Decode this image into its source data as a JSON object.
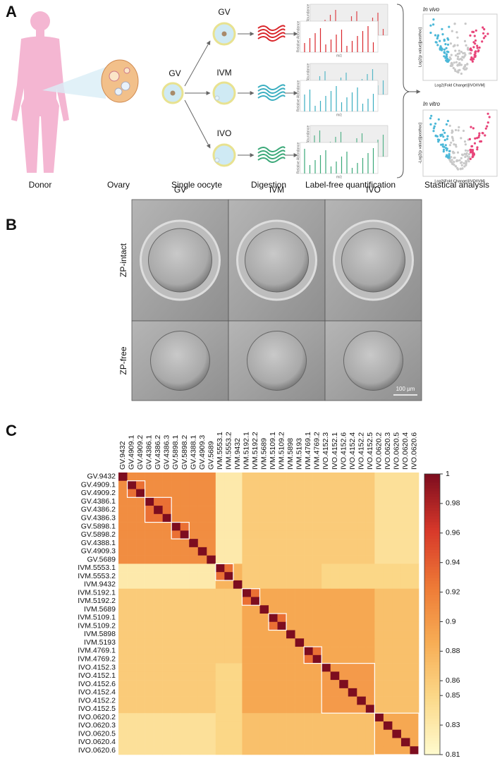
{
  "panel_a": {
    "letter": "A",
    "stages": [
      "Donor",
      "Ovary",
      "Single oocyte",
      "Digestion",
      "Label-free quantification",
      "Stastical analysis"
    ],
    "oocyte": "GV",
    "groups": [
      "GV",
      "IVM",
      "IVO"
    ],
    "volcano_titles": [
      "In vivo",
      "In vitro"
    ],
    "volcano_y_labels": [
      "Log2(p value)[posthoc]",
      "-Log2(p value)[posthoc]"
    ],
    "volcano_x_labels": [
      "Log2(Fold Change)[IVO/IVM]",
      "Log2(Fold Change)[IVO/IVM]"
    ],
    "spectrum_y_label": "Relative Abundance",
    "spectrum_x_label": "m/z"
  },
  "panel_b": {
    "letter": "B",
    "columns": [
      "GV",
      "IVM",
      "IVO"
    ],
    "rows": [
      "ZP-intact",
      "ZP-free"
    ],
    "scale_bar": "100 µm"
  },
  "chart_data": {
    "type": "heatmap",
    "letter": "C",
    "labels": [
      "GV.9432",
      "GV.4909.1",
      "GV.4909.2",
      "GV.4386.1",
      "GV.4386.2",
      "GV.4386.3",
      "GV.5898.1",
      "GV.5898.2",
      "GV.4388.1",
      "GV.4909.3",
      "GV.5689",
      "IVM.5553.1",
      "IVM.5553.2",
      "IVM.9432",
      "IVM.5192.1",
      "IVM.5192.2",
      "IVM.5689",
      "IVM.5109.1",
      "IVM.5109.2",
      "IVM.5898",
      "IVM.5193",
      "IVM.4769.1",
      "IVM.4769.2",
      "IVO.4152.3",
      "IVO.4152.1",
      "IVO.4152.6",
      "IVO.4152.4",
      "IVO.4152.2",
      "IVO.4152.5",
      "IVO.0620.2",
      "IVO.0620.3",
      "IVO.0620.5",
      "IVO.0620.4",
      "IVO.0620.6"
    ],
    "zlim": [
      0.81,
      1
    ],
    "zticks": [
      0.81,
      0.83,
      0.85,
      0.86,
      0.88,
      0.9,
      0.92,
      0.94,
      0.96,
      0.98,
      1
    ],
    "colorscale": [
      "#fffbcf",
      "#fbd98a",
      "#f7ad55",
      "#ee7a36",
      "#d7382a",
      "#7d0d1f"
    ],
    "z": [
      [
        1,
        0.91,
        0.91,
        0.91,
        0.91,
        0.91,
        0.91,
        0.91,
        0.91,
        0.91,
        0.91,
        0.83,
        0.83,
        0.83,
        0.86,
        0.86,
        0.86,
        0.86,
        0.86,
        0.86,
        0.86,
        0.86,
        0.86,
        0.86,
        0.86,
        0.86,
        0.86,
        0.86,
        0.86,
        0.84,
        0.84,
        0.84,
        0.84,
        0.84
      ],
      [
        0.91,
        1,
        0.93,
        0.91,
        0.91,
        0.91,
        0.91,
        0.91,
        0.91,
        0.91,
        0.91,
        0.83,
        0.83,
        0.83,
        0.86,
        0.86,
        0.86,
        0.86,
        0.86,
        0.86,
        0.86,
        0.86,
        0.86,
        0.86,
        0.86,
        0.86,
        0.86,
        0.86,
        0.86,
        0.84,
        0.84,
        0.84,
        0.84,
        0.84
      ],
      [
        0.91,
        0.93,
        1,
        0.91,
        0.91,
        0.91,
        0.91,
        0.91,
        0.91,
        0.91,
        0.91,
        0.83,
        0.83,
        0.83,
        0.86,
        0.86,
        0.86,
        0.86,
        0.86,
        0.86,
        0.86,
        0.86,
        0.86,
        0.86,
        0.86,
        0.86,
        0.86,
        0.86,
        0.86,
        0.84,
        0.84,
        0.84,
        0.84,
        0.84
      ],
      [
        0.91,
        0.91,
        0.91,
        1,
        0.93,
        0.93,
        0.91,
        0.91,
        0.91,
        0.91,
        0.91,
        0.83,
        0.83,
        0.83,
        0.86,
        0.86,
        0.86,
        0.86,
        0.86,
        0.86,
        0.86,
        0.86,
        0.86,
        0.86,
        0.86,
        0.86,
        0.86,
        0.86,
        0.86,
        0.84,
        0.84,
        0.84,
        0.84,
        0.84
      ],
      [
        0.91,
        0.91,
        0.91,
        0.93,
        1,
        0.93,
        0.91,
        0.91,
        0.91,
        0.91,
        0.91,
        0.83,
        0.83,
        0.83,
        0.86,
        0.86,
        0.86,
        0.86,
        0.86,
        0.86,
        0.86,
        0.86,
        0.86,
        0.86,
        0.86,
        0.86,
        0.86,
        0.86,
        0.86,
        0.84,
        0.84,
        0.84,
        0.84,
        0.84
      ],
      [
        0.91,
        0.91,
        0.91,
        0.93,
        0.93,
        1,
        0.91,
        0.91,
        0.91,
        0.91,
        0.91,
        0.83,
        0.83,
        0.83,
        0.86,
        0.86,
        0.86,
        0.86,
        0.86,
        0.86,
        0.86,
        0.86,
        0.86,
        0.86,
        0.86,
        0.86,
        0.86,
        0.86,
        0.86,
        0.84,
        0.84,
        0.84,
        0.84,
        0.84
      ],
      [
        0.91,
        0.91,
        0.91,
        0.91,
        0.91,
        0.91,
        1,
        0.93,
        0.91,
        0.91,
        0.91,
        0.83,
        0.83,
        0.83,
        0.86,
        0.86,
        0.86,
        0.86,
        0.86,
        0.86,
        0.86,
        0.86,
        0.86,
        0.86,
        0.86,
        0.86,
        0.86,
        0.86,
        0.86,
        0.84,
        0.84,
        0.84,
        0.84,
        0.84
      ],
      [
        0.91,
        0.91,
        0.91,
        0.91,
        0.91,
        0.91,
        0.93,
        1,
        0.91,
        0.91,
        0.91,
        0.83,
        0.83,
        0.83,
        0.86,
        0.86,
        0.86,
        0.86,
        0.86,
        0.86,
        0.86,
        0.86,
        0.86,
        0.86,
        0.86,
        0.86,
        0.86,
        0.86,
        0.86,
        0.84,
        0.84,
        0.84,
        0.84,
        0.84
      ],
      [
        0.91,
        0.91,
        0.91,
        0.91,
        0.91,
        0.91,
        0.91,
        0.91,
        1,
        0.91,
        0.91,
        0.83,
        0.83,
        0.83,
        0.86,
        0.86,
        0.86,
        0.86,
        0.86,
        0.86,
        0.86,
        0.86,
        0.86,
        0.86,
        0.86,
        0.86,
        0.86,
        0.86,
        0.86,
        0.84,
        0.84,
        0.84,
        0.84,
        0.84
      ],
      [
        0.91,
        0.91,
        0.91,
        0.91,
        0.91,
        0.91,
        0.91,
        0.91,
        0.91,
        1,
        0.91,
        0.83,
        0.83,
        0.83,
        0.86,
        0.86,
        0.86,
        0.86,
        0.86,
        0.86,
        0.86,
        0.86,
        0.86,
        0.86,
        0.86,
        0.86,
        0.86,
        0.86,
        0.86,
        0.84,
        0.84,
        0.84,
        0.84,
        0.84
      ],
      [
        0.91,
        0.91,
        0.91,
        0.91,
        0.91,
        0.91,
        0.91,
        0.91,
        0.91,
        0.91,
        1,
        0.83,
        0.83,
        0.83,
        0.86,
        0.86,
        0.86,
        0.86,
        0.86,
        0.86,
        0.86,
        0.86,
        0.86,
        0.86,
        0.86,
        0.86,
        0.86,
        0.86,
        0.86,
        0.84,
        0.84,
        0.84,
        0.84,
        0.84
      ],
      [
        0.83,
        0.83,
        0.83,
        0.83,
        0.83,
        0.83,
        0.83,
        0.83,
        0.83,
        0.83,
        0.83,
        1,
        0.93,
        0.88,
        0.86,
        0.86,
        0.86,
        0.86,
        0.86,
        0.86,
        0.86,
        0.86,
        0.86,
        0.85,
        0.85,
        0.85,
        0.85,
        0.85,
        0.85,
        0.85,
        0.85,
        0.85,
        0.85,
        0.85
      ],
      [
        0.83,
        0.83,
        0.83,
        0.83,
        0.83,
        0.83,
        0.83,
        0.83,
        0.83,
        0.83,
        0.83,
        0.93,
        1,
        0.88,
        0.86,
        0.86,
        0.86,
        0.86,
        0.86,
        0.86,
        0.86,
        0.86,
        0.86,
        0.85,
        0.85,
        0.85,
        0.85,
        0.85,
        0.85,
        0.85,
        0.85,
        0.85,
        0.85,
        0.85
      ],
      [
        0.83,
        0.83,
        0.83,
        0.83,
        0.83,
        0.83,
        0.83,
        0.83,
        0.83,
        0.83,
        0.83,
        0.88,
        0.88,
        1,
        0.86,
        0.86,
        0.86,
        0.86,
        0.86,
        0.86,
        0.86,
        0.86,
        0.86,
        0.85,
        0.85,
        0.85,
        0.85,
        0.85,
        0.85,
        0.85,
        0.85,
        0.85,
        0.85,
        0.85
      ],
      [
        0.86,
        0.86,
        0.86,
        0.86,
        0.86,
        0.86,
        0.86,
        0.86,
        0.86,
        0.86,
        0.86,
        0.86,
        0.86,
        0.86,
        1,
        0.93,
        0.89,
        0.89,
        0.89,
        0.89,
        0.89,
        0.89,
        0.89,
        0.89,
        0.89,
        0.89,
        0.89,
        0.89,
        0.89,
        0.87,
        0.87,
        0.87,
        0.87,
        0.87
      ],
      [
        0.86,
        0.86,
        0.86,
        0.86,
        0.86,
        0.86,
        0.86,
        0.86,
        0.86,
        0.86,
        0.86,
        0.86,
        0.86,
        0.86,
        0.93,
        1,
        0.89,
        0.89,
        0.89,
        0.89,
        0.89,
        0.89,
        0.89,
        0.89,
        0.89,
        0.89,
        0.89,
        0.89,
        0.89,
        0.87,
        0.87,
        0.87,
        0.87,
        0.87
      ],
      [
        0.86,
        0.86,
        0.86,
        0.86,
        0.86,
        0.86,
        0.86,
        0.86,
        0.86,
        0.86,
        0.86,
        0.86,
        0.86,
        0.86,
        0.89,
        0.89,
        1,
        0.89,
        0.89,
        0.89,
        0.89,
        0.89,
        0.89,
        0.89,
        0.89,
        0.89,
        0.89,
        0.89,
        0.89,
        0.87,
        0.87,
        0.87,
        0.87,
        0.87
      ],
      [
        0.86,
        0.86,
        0.86,
        0.86,
        0.86,
        0.86,
        0.86,
        0.86,
        0.86,
        0.86,
        0.86,
        0.86,
        0.86,
        0.86,
        0.89,
        0.89,
        0.89,
        1,
        0.93,
        0.89,
        0.89,
        0.89,
        0.89,
        0.89,
        0.89,
        0.89,
        0.89,
        0.89,
        0.89,
        0.87,
        0.87,
        0.87,
        0.87,
        0.87
      ],
      [
        0.86,
        0.86,
        0.86,
        0.86,
        0.86,
        0.86,
        0.86,
        0.86,
        0.86,
        0.86,
        0.86,
        0.86,
        0.86,
        0.86,
        0.89,
        0.89,
        0.89,
        0.93,
        1,
        0.89,
        0.89,
        0.89,
        0.89,
        0.89,
        0.89,
        0.89,
        0.89,
        0.89,
        0.89,
        0.87,
        0.87,
        0.87,
        0.87,
        0.87
      ],
      [
        0.86,
        0.86,
        0.86,
        0.86,
        0.86,
        0.86,
        0.86,
        0.86,
        0.86,
        0.86,
        0.86,
        0.86,
        0.86,
        0.86,
        0.89,
        0.89,
        0.89,
        0.89,
        0.89,
        1,
        0.89,
        0.89,
        0.89,
        0.89,
        0.89,
        0.89,
        0.89,
        0.89,
        0.89,
        0.87,
        0.87,
        0.87,
        0.87,
        0.87
      ],
      [
        0.86,
        0.86,
        0.86,
        0.86,
        0.86,
        0.86,
        0.86,
        0.86,
        0.86,
        0.86,
        0.86,
        0.86,
        0.86,
        0.86,
        0.89,
        0.89,
        0.89,
        0.89,
        0.89,
        0.89,
        1,
        0.89,
        0.89,
        0.89,
        0.89,
        0.89,
        0.89,
        0.89,
        0.89,
        0.87,
        0.87,
        0.87,
        0.87,
        0.87
      ],
      [
        0.86,
        0.86,
        0.86,
        0.86,
        0.86,
        0.86,
        0.86,
        0.86,
        0.86,
        0.86,
        0.86,
        0.86,
        0.86,
        0.86,
        0.89,
        0.89,
        0.89,
        0.89,
        0.89,
        0.89,
        0.89,
        1,
        0.93,
        0.89,
        0.89,
        0.89,
        0.89,
        0.89,
        0.89,
        0.87,
        0.87,
        0.87,
        0.87,
        0.87
      ],
      [
        0.86,
        0.86,
        0.86,
        0.86,
        0.86,
        0.86,
        0.86,
        0.86,
        0.86,
        0.86,
        0.86,
        0.86,
        0.86,
        0.86,
        0.89,
        0.89,
        0.89,
        0.89,
        0.89,
        0.89,
        0.89,
        0.93,
        1,
        0.89,
        0.89,
        0.89,
        0.89,
        0.89,
        0.89,
        0.87,
        0.87,
        0.87,
        0.87,
        0.87
      ],
      [
        0.86,
        0.86,
        0.86,
        0.86,
        0.86,
        0.86,
        0.86,
        0.86,
        0.86,
        0.86,
        0.86,
        0.85,
        0.85,
        0.85,
        0.89,
        0.89,
        0.89,
        0.89,
        0.89,
        0.89,
        0.89,
        0.89,
        0.89,
        1,
        0.9,
        0.9,
        0.9,
        0.9,
        0.9,
        0.87,
        0.87,
        0.87,
        0.87,
        0.87
      ],
      [
        0.86,
        0.86,
        0.86,
        0.86,
        0.86,
        0.86,
        0.86,
        0.86,
        0.86,
        0.86,
        0.86,
        0.85,
        0.85,
        0.85,
        0.89,
        0.89,
        0.89,
        0.89,
        0.89,
        0.89,
        0.89,
        0.89,
        0.89,
        0.9,
        1,
        0.9,
        0.9,
        0.9,
        0.9,
        0.87,
        0.87,
        0.87,
        0.87,
        0.87
      ],
      [
        0.86,
        0.86,
        0.86,
        0.86,
        0.86,
        0.86,
        0.86,
        0.86,
        0.86,
        0.86,
        0.86,
        0.85,
        0.85,
        0.85,
        0.89,
        0.89,
        0.89,
        0.89,
        0.89,
        0.89,
        0.89,
        0.89,
        0.89,
        0.9,
        0.9,
        1,
        0.9,
        0.9,
        0.9,
        0.87,
        0.87,
        0.87,
        0.87,
        0.87
      ],
      [
        0.86,
        0.86,
        0.86,
        0.86,
        0.86,
        0.86,
        0.86,
        0.86,
        0.86,
        0.86,
        0.86,
        0.85,
        0.85,
        0.85,
        0.89,
        0.89,
        0.89,
        0.89,
        0.89,
        0.89,
        0.89,
        0.89,
        0.89,
        0.9,
        0.9,
        0.9,
        1,
        0.9,
        0.9,
        0.87,
        0.87,
        0.87,
        0.87,
        0.87
      ],
      [
        0.86,
        0.86,
        0.86,
        0.86,
        0.86,
        0.86,
        0.86,
        0.86,
        0.86,
        0.86,
        0.86,
        0.85,
        0.85,
        0.85,
        0.89,
        0.89,
        0.89,
        0.89,
        0.89,
        0.89,
        0.89,
        0.89,
        0.89,
        0.9,
        0.9,
        0.9,
        0.9,
        1,
        0.9,
        0.87,
        0.87,
        0.87,
        0.87,
        0.87
      ],
      [
        0.86,
        0.86,
        0.86,
        0.86,
        0.86,
        0.86,
        0.86,
        0.86,
        0.86,
        0.86,
        0.86,
        0.85,
        0.85,
        0.85,
        0.89,
        0.89,
        0.89,
        0.89,
        0.89,
        0.89,
        0.89,
        0.89,
        0.89,
        0.9,
        0.9,
        0.9,
        0.9,
        0.9,
        1,
        0.87,
        0.87,
        0.87,
        0.87,
        0.87
      ],
      [
        0.84,
        0.84,
        0.84,
        0.84,
        0.84,
        0.84,
        0.84,
        0.84,
        0.84,
        0.84,
        0.84,
        0.85,
        0.85,
        0.85,
        0.87,
        0.87,
        0.87,
        0.87,
        0.87,
        0.87,
        0.87,
        0.87,
        0.87,
        0.87,
        0.87,
        0.87,
        0.87,
        0.87,
        0.87,
        1,
        0.89,
        0.89,
        0.89,
        0.89
      ],
      [
        0.84,
        0.84,
        0.84,
        0.84,
        0.84,
        0.84,
        0.84,
        0.84,
        0.84,
        0.84,
        0.84,
        0.85,
        0.85,
        0.85,
        0.87,
        0.87,
        0.87,
        0.87,
        0.87,
        0.87,
        0.87,
        0.87,
        0.87,
        0.87,
        0.87,
        0.87,
        0.87,
        0.87,
        0.87,
        0.89,
        1,
        0.89,
        0.89,
        0.89
      ],
      [
        0.84,
        0.84,
        0.84,
        0.84,
        0.84,
        0.84,
        0.84,
        0.84,
        0.84,
        0.84,
        0.84,
        0.85,
        0.85,
        0.85,
        0.87,
        0.87,
        0.87,
        0.87,
        0.87,
        0.87,
        0.87,
        0.87,
        0.87,
        0.87,
        0.87,
        0.87,
        0.87,
        0.87,
        0.87,
        0.89,
        0.89,
        1,
        0.89,
        0.89
      ],
      [
        0.84,
        0.84,
        0.84,
        0.84,
        0.84,
        0.84,
        0.84,
        0.84,
        0.84,
        0.84,
        0.84,
        0.85,
        0.85,
        0.85,
        0.87,
        0.87,
        0.87,
        0.87,
        0.87,
        0.87,
        0.87,
        0.87,
        0.87,
        0.87,
        0.87,
        0.87,
        0.87,
        0.87,
        0.87,
        0.89,
        0.89,
        0.89,
        1,
        0.89
      ],
      [
        0.84,
        0.84,
        0.84,
        0.84,
        0.84,
        0.84,
        0.84,
        0.84,
        0.84,
        0.84,
        0.84,
        0.85,
        0.85,
        0.85,
        0.87,
        0.87,
        0.87,
        0.87,
        0.87,
        0.87,
        0.87,
        0.87,
        0.87,
        0.87,
        0.87,
        0.87,
        0.87,
        0.87,
        0.87,
        0.89,
        0.89,
        0.89,
        0.89,
        1
      ]
    ]
  }
}
